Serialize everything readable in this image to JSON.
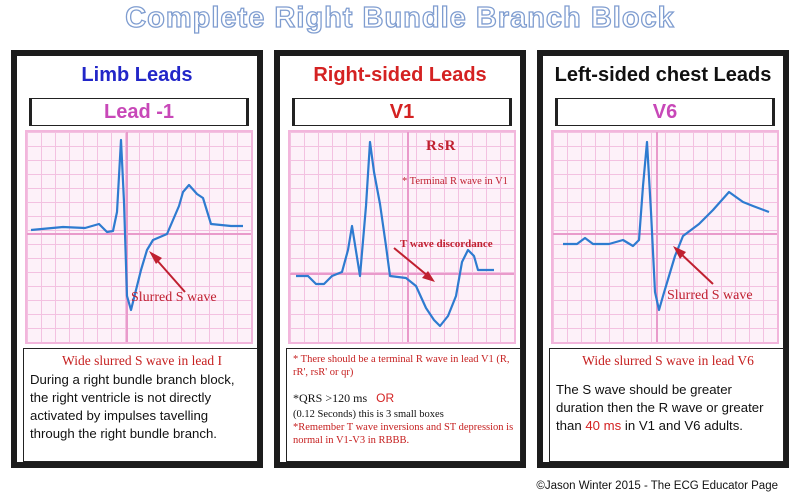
{
  "title": "Complete Right Bundle Branch Block",
  "footer": "©Jason Winter 2015 - The ECG Educator Page",
  "colors": {
    "trace": "#2e7bd0",
    "arrow": "#c02030",
    "grid": "#f3c1e1"
  },
  "panels": [
    {
      "heading": "Limb Leads",
      "lead": "Lead -1",
      "annotation": "Slurred S wave",
      "caption": "Wide slurred S wave in lead I",
      "body": "During a right bundle branch block, the right ventricle is not directly activated by impulses tavelling through the right bundle branch."
    },
    {
      "heading": "Right-sided Leads",
      "lead": "V1",
      "label_rsr": "RsR",
      "note_terminal": "* Terminal R wave in V1",
      "annotation": "T wave discordance",
      "caption": "* There should be a terminal R wave in lead V1 (R, rR', rsR' or qr)",
      "qrs": "*QRS >120 ms",
      "or": "OR",
      "seconds": "(0.12 Seconds) this is 3 small boxes",
      "remember": "*Remember T wave inversions and ST depression is normal in V1-V3 in RBBB."
    },
    {
      "heading": "Left-sided chest Leads",
      "lead": "V6",
      "annotation": "Slurred S wave",
      "caption": "Wide slurred S wave in lead V6",
      "body_a": "The S wave should be greater duration then the R wave or greater than ",
      "body_highlight": "40 ms",
      "body_b": " in V1 and V6 adults."
    }
  ]
}
